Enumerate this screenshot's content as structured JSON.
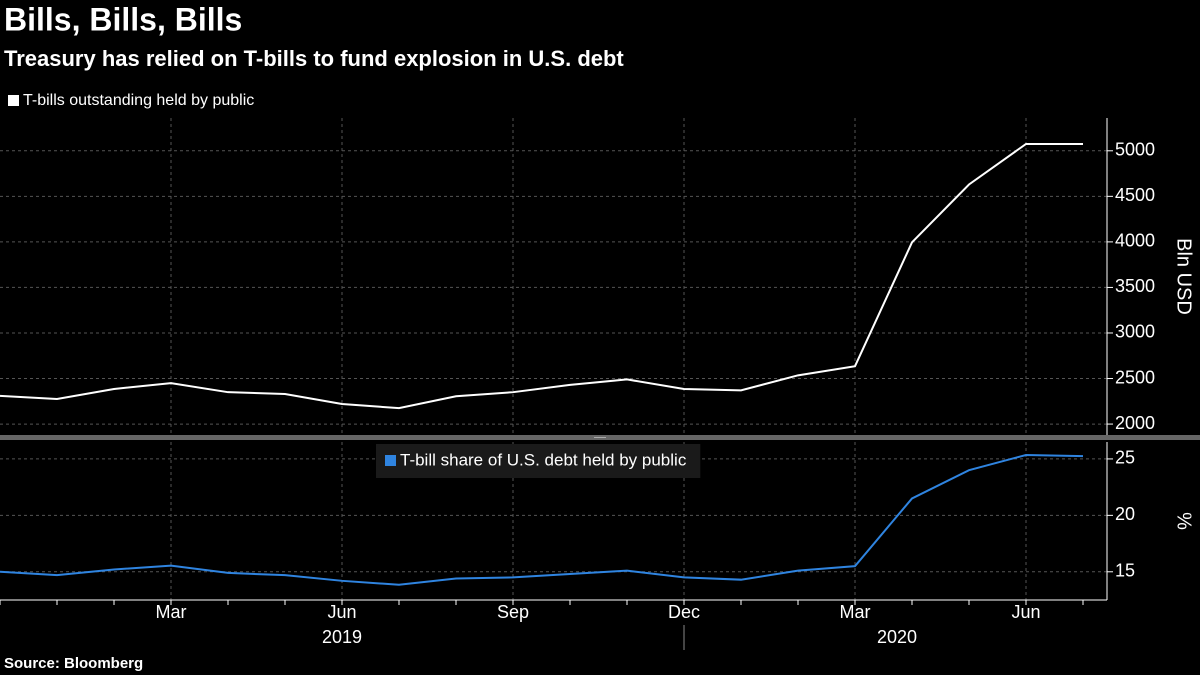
{
  "title": "Bills, Bills, Bills",
  "subtitle": "Treasury has relied on T-bills to fund explosion in U.S. debt",
  "source": "Source: Bloomberg",
  "chart_data": [
    {
      "type": "line",
      "series": [
        {
          "name": "T-bills outstanding held by public",
          "color": "#ffffff",
          "values": [
            2310,
            2275,
            2385,
            2450,
            2350,
            2330,
            2220,
            2175,
            2305,
            2350,
            2430,
            2490,
            2385,
            2370,
            2535,
            2635,
            3995,
            4630,
            5075,
            5075
          ]
        }
      ],
      "ylabel": "Bln USD",
      "ylim": [
        1880,
        5360
      ],
      "yticks": [
        2000,
        2500,
        3000,
        3500,
        4000,
        4500,
        5000
      ],
      "grid": true,
      "legend": "top-left"
    },
    {
      "type": "line",
      "categories": [
        null,
        null,
        null,
        "Mar",
        null,
        null,
        "Jun",
        null,
        null,
        "Sep",
        null,
        null,
        "Dec",
        null,
        null,
        "Mar",
        null,
        null,
        "Jun",
        null
      ],
      "years": [
        "2019",
        "2020"
      ],
      "series": [
        {
          "name": "T-bill share of U.S. debt held by public",
          "color": "#2f84e0",
          "values": [
            15.0,
            14.7,
            15.2,
            15.55,
            14.9,
            14.7,
            14.2,
            13.85,
            14.4,
            14.5,
            14.8,
            15.1,
            14.5,
            14.3,
            15.1,
            15.5,
            21.5,
            24.0,
            25.35,
            25.25
          ]
        }
      ],
      "ylabel": "%",
      "ylim": [
        12.5,
        26.5
      ],
      "yticks": [
        15,
        20,
        25
      ],
      "grid": true,
      "legend": "top-center"
    }
  ]
}
